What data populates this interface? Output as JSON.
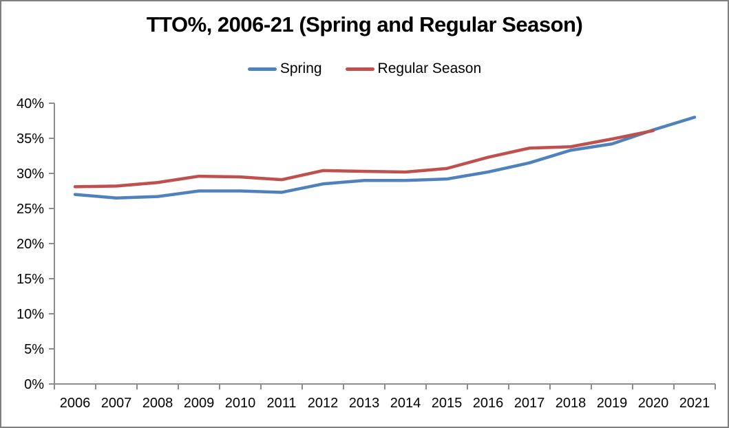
{
  "window": {
    "background_color": "#ffffff",
    "border_color": "#7f7f7f"
  },
  "chart_data": {
    "type": "line",
    "title": "TTO%, 2006-21 (Spring and Regular Season)",
    "xlabel": "",
    "ylabel": "",
    "categories": [
      "2006",
      "2007",
      "2008",
      "2009",
      "2010",
      "2011",
      "2012",
      "2013",
      "2014",
      "2015",
      "2016",
      "2017",
      "2018",
      "2019",
      "2020",
      "2021"
    ],
    "series": [
      {
        "name": "Spring",
        "color": "#4F81BD",
        "values": [
          27.0,
          26.5,
          26.7,
          27.5,
          27.5,
          27.3,
          28.5,
          29.0,
          29.0,
          29.2,
          30.2,
          31.5,
          33.3,
          34.2,
          36.2,
          38.0
        ]
      },
      {
        "name": "Regular Season",
        "color": "#C0504D",
        "values": [
          28.1,
          28.2,
          28.7,
          29.6,
          29.5,
          29.1,
          30.4,
          30.3,
          30.2,
          30.7,
          32.3,
          33.6,
          33.8,
          34.9,
          36.1,
          null
        ]
      }
    ],
    "ylim": [
      0,
      40
    ],
    "ytick_step": 5,
    "ytick_labels": [
      "0%",
      "5%",
      "10%",
      "15%",
      "20%",
      "25%",
      "30%",
      "35%",
      "40%"
    ],
    "legend_position": "top",
    "grid": false,
    "axis_color": "#8c8c8c",
    "text_color": "#000000",
    "line_width": 4.5
  }
}
